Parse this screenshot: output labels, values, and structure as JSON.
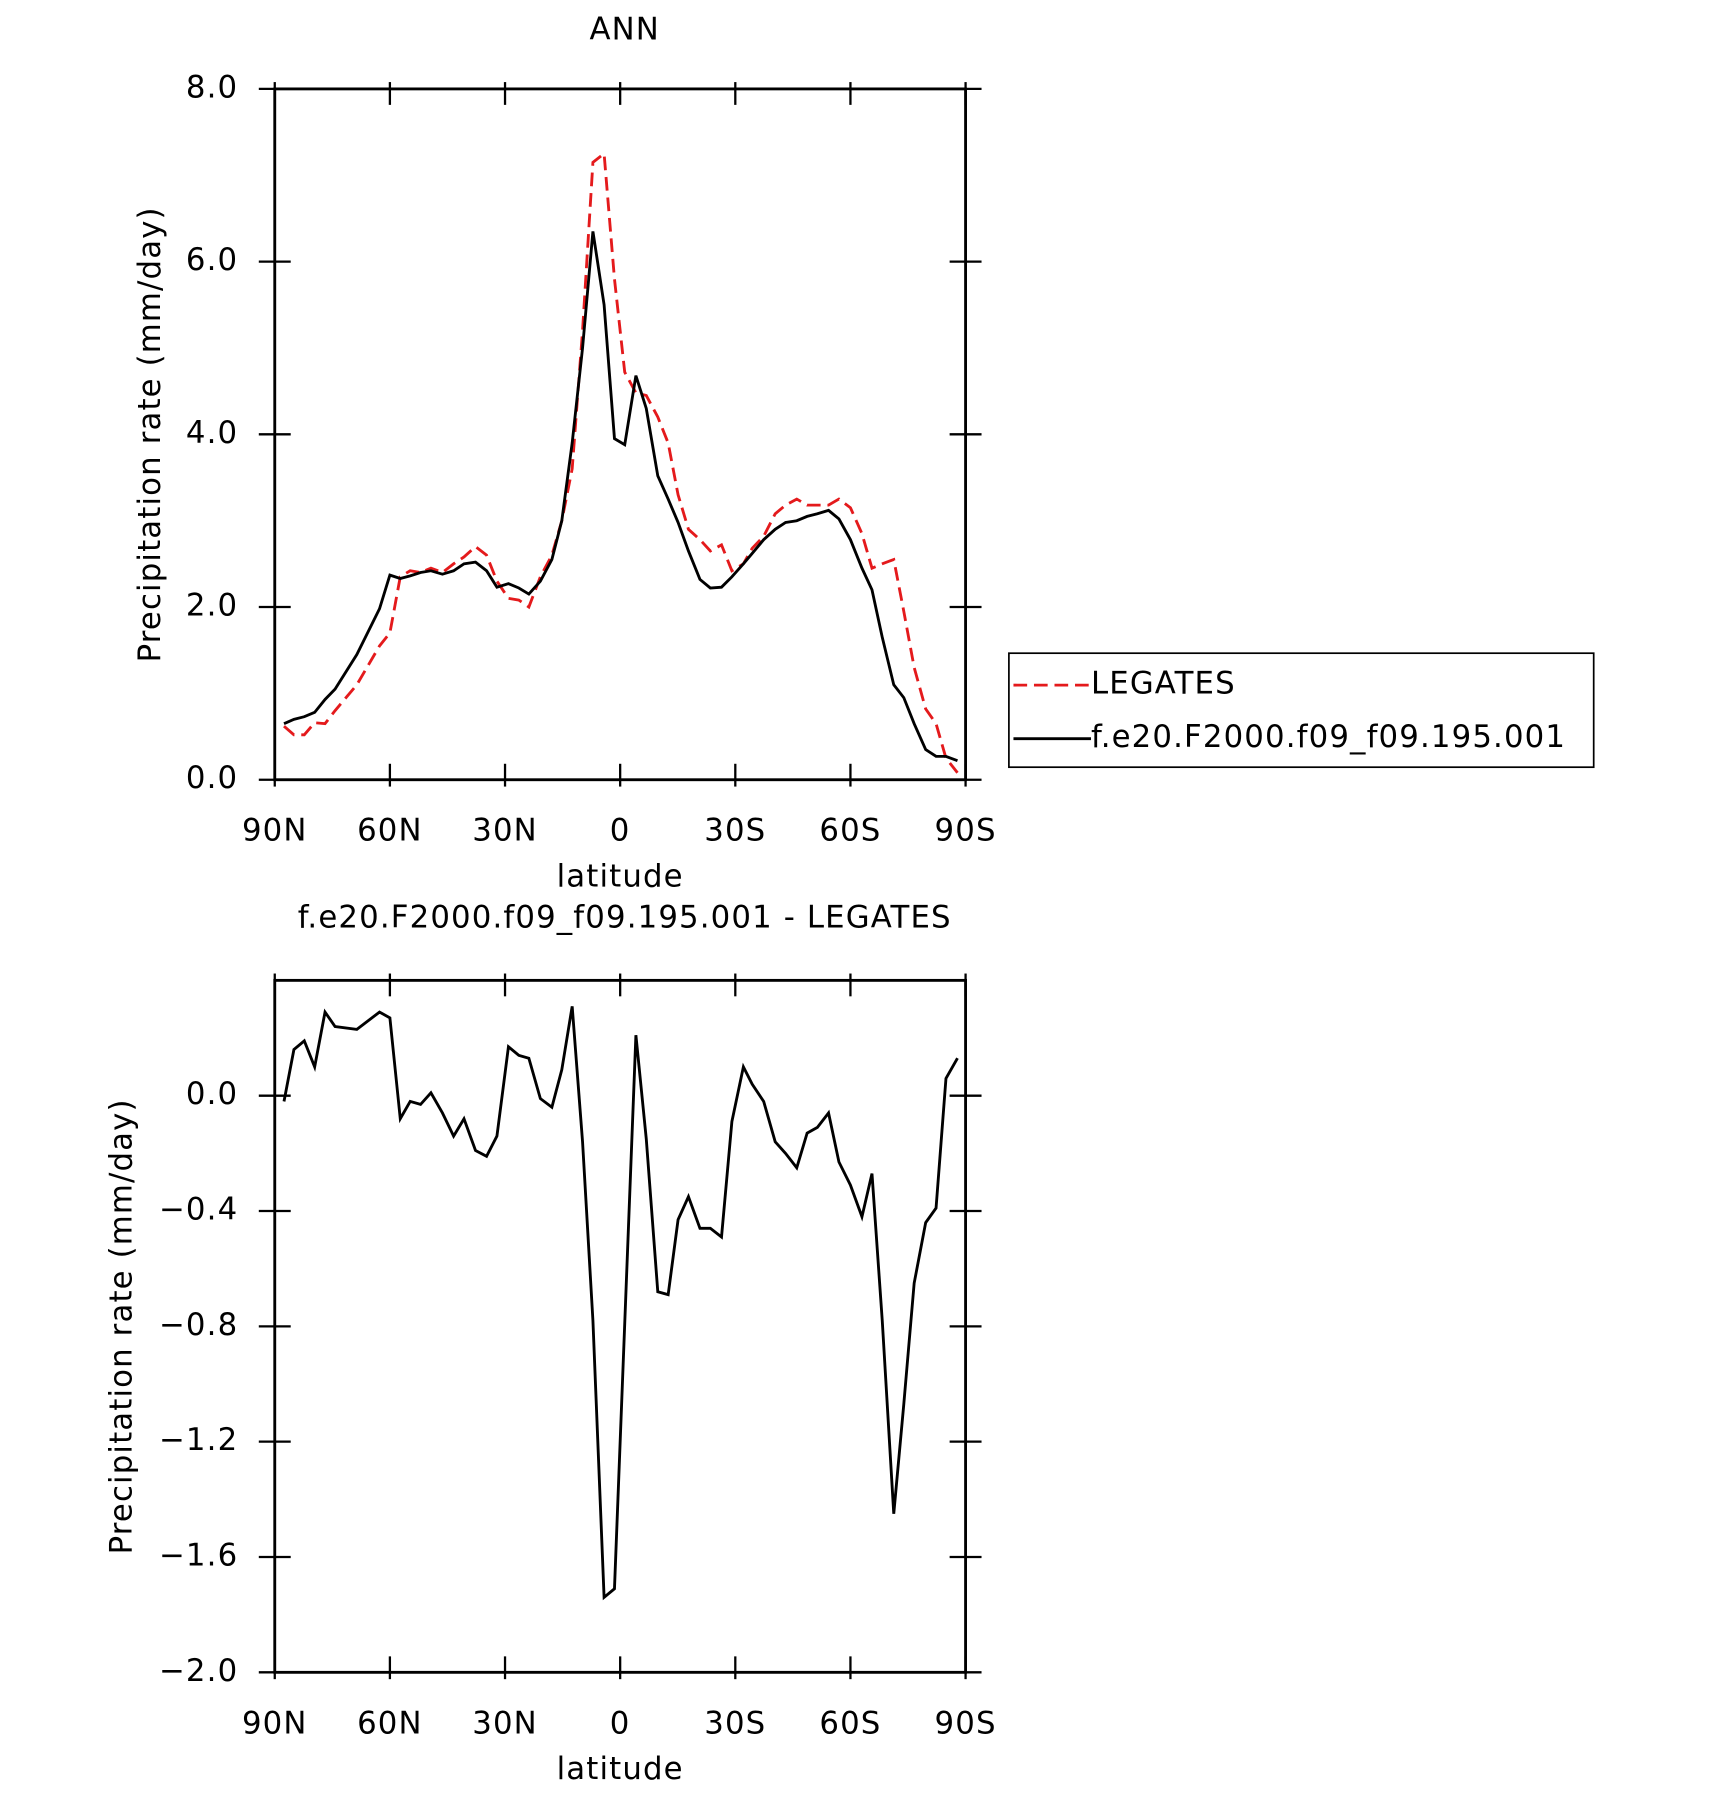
{
  "chart_data": [
    {
      "type": "line",
      "title": "ANN",
      "xlabel": "latitude",
      "ylabel": "Precipitation rate (mm/day)",
      "x": [
        87.6,
        85.0,
        82.3,
        79.6,
        76.9,
        74.3,
        68.6,
        62.7,
        60.0,
        57.3,
        54.7,
        52.0,
        49.3,
        46.3,
        43.4,
        40.7,
        37.7,
        34.8,
        32.1,
        29.1,
        26.4,
        23.8,
        20.8,
        17.8,
        15.2,
        12.5,
        9.8,
        7.1,
        4.2,
        1.5,
        -1.2,
        -4.1,
        -6.8,
        -9.8,
        -12.5,
        -15.1,
        -17.8,
        -20.8,
        -23.5,
        -26.4,
        -29.1,
        -32.1,
        -34.4,
        -37.4,
        -40.4,
        -43.1,
        -46.0,
        -48.7,
        -51.4,
        -54.3,
        -57.0,
        -60.0,
        -63.0,
        -65.6,
        -68.3,
        -71.3,
        -73.9,
        -76.6,
        -79.6,
        -82.3,
        -84.9,
        -87.9
      ],
      "series": [
        {
          "name": "LEGATES",
          "color": "#e41a1c",
          "dash": true,
          "values": [
            0.62,
            0.52,
            0.52,
            0.66,
            0.65,
            0.8,
            1.1,
            1.55,
            1.7,
            2.35,
            2.42,
            2.4,
            2.45,
            2.4,
            2.5,
            2.58,
            2.7,
            2.6,
            2.3,
            2.1,
            2.08,
            2.0,
            2.35,
            2.6,
            3.0,
            3.6,
            5.2,
            7.15,
            7.25,
            5.8,
            4.72,
            4.48,
            4.45,
            4.2,
            3.9,
            3.3,
            2.9,
            2.78,
            2.65,
            2.72,
            2.42,
            2.5,
            2.68,
            2.82,
            3.08,
            3.18,
            3.25,
            3.18,
            3.18,
            3.18,
            3.25,
            3.15,
            2.85,
            2.45,
            2.5,
            2.55,
            1.95,
            1.3,
            0.82,
            0.65,
            0.25,
            0.08
          ]
        },
        {
          "name": "f.e20.F2000.f09_f09.195.001",
          "color": "#000000",
          "dash": false,
          "values": [
            0.65,
            0.7,
            0.73,
            0.78,
            0.93,
            1.05,
            1.45,
            1.98,
            2.37,
            2.33,
            2.36,
            2.4,
            2.42,
            2.38,
            2.42,
            2.5,
            2.52,
            2.42,
            2.23,
            2.27,
            2.22,
            2.15,
            2.3,
            2.55,
            3.0,
            3.9,
            5.0,
            6.35,
            5.5,
            3.95,
            3.88,
            4.68,
            4.3,
            3.52,
            3.25,
            2.98,
            2.65,
            2.32,
            2.22,
            2.23,
            2.35,
            2.5,
            2.62,
            2.78,
            2.9,
            2.98,
            3.0,
            3.05,
            3.08,
            3.12,
            3.02,
            2.78,
            2.45,
            2.2,
            1.65,
            1.1,
            0.95,
            0.65,
            0.35,
            0.27,
            0.27,
            0.22
          ]
        }
      ],
      "xlim": [
        90,
        -90
      ],
      "xticks": [
        {
          "value": 90,
          "label": "90N"
        },
        {
          "value": 60,
          "label": "60N"
        },
        {
          "value": 30,
          "label": "30N"
        },
        0,
        {
          "value": -30,
          "label": "30S"
        },
        {
          "value": -60,
          "label": "60S"
        },
        {
          "value": -90,
          "label": "90S"
        }
      ],
      "ylim": [
        0,
        8
      ],
      "yticks": [
        {
          "value": 0,
          "label": "0.0"
        },
        {
          "value": 2,
          "label": "2.0"
        },
        {
          "value": 4,
          "label": "4.0"
        },
        {
          "value": 6,
          "label": "6.0"
        },
        {
          "value": 8,
          "label": "8.0"
        }
      ],
      "legend": "right"
    },
    {
      "type": "line",
      "title": "f.e20.F2000.f09_f09.195.001 - LEGATES",
      "xlabel": "latitude",
      "ylabel": "Precipitation rate (mm/day)",
      "x": [
        87.6,
        85.0,
        82.3,
        79.6,
        76.9,
        74.3,
        68.6,
        62.7,
        60.0,
        57.3,
        54.7,
        52.0,
        49.3,
        46.3,
        43.4,
        40.7,
        37.7,
        34.8,
        32.1,
        29.1,
        26.4,
        23.8,
        20.8,
        17.8,
        15.2,
        12.5,
        9.8,
        7.1,
        4.2,
        1.5,
        -1.2,
        -4.1,
        -6.8,
        -9.8,
        -12.5,
        -15.1,
        -17.8,
        -20.8,
        -23.5,
        -26.4,
        -29.1,
        -32.1,
        -34.4,
        -37.4,
        -40.4,
        -43.1,
        -46.0,
        -48.7,
        -51.4,
        -54.3,
        -57.0,
        -60.0,
        -63.0,
        -65.6,
        -68.3,
        -71.3,
        -73.9,
        -76.6,
        -79.6,
        -82.3,
        -84.9,
        -87.9
      ],
      "series": [
        {
          "color": "#000000",
          "dash": false,
          "values": [
            -0.02,
            0.16,
            0.19,
            0.1,
            0.29,
            0.24,
            0.23,
            0.29,
            0.27,
            -0.08,
            -0.02,
            -0.03,
            0.01,
            -0.06,
            -0.14,
            -0.08,
            -0.19,
            -0.21,
            -0.14,
            0.17,
            0.14,
            0.13,
            -0.01,
            -0.04,
            0.09,
            0.31,
            -0.16,
            -0.78,
            -1.74,
            -1.71,
            -0.79,
            0.21,
            -0.15,
            -0.68,
            -0.69,
            -0.43,
            -0.35,
            -0.46,
            -0.46,
            -0.49,
            -0.09,
            0.1,
            0.04,
            -0.02,
            -0.16,
            -0.2,
            -0.25,
            -0.13,
            -0.11,
            -0.06,
            -0.23,
            -0.31,
            -0.42,
            -0.27,
            -0.78,
            -1.45,
            -1.07,
            -0.65,
            -0.44,
            -0.39,
            0.06,
            0.13
          ]
        }
      ],
      "xlim": [
        90,
        -90
      ],
      "xticks": [
        {
          "value": 90,
          "label": "90N"
        },
        {
          "value": 60,
          "label": "60N"
        },
        {
          "value": 30,
          "label": "30N"
        },
        0,
        {
          "value": -30,
          "label": "30S"
        },
        {
          "value": -60,
          "label": "60S"
        },
        {
          "value": -90,
          "label": "90S"
        }
      ],
      "ylim": [
        -2,
        0.4
      ],
      "yticks": [
        {
          "value": -2,
          "label": "−2.0"
        },
        {
          "value": -1.6,
          "label": "−1.6"
        },
        {
          "value": -1.2,
          "label": "−1.2"
        },
        {
          "value": -0.8,
          "label": "−0.8"
        },
        {
          "value": -0.4,
          "label": "−0.4"
        },
        {
          "value": 0,
          "label": "0.0"
        }
      ]
    }
  ]
}
